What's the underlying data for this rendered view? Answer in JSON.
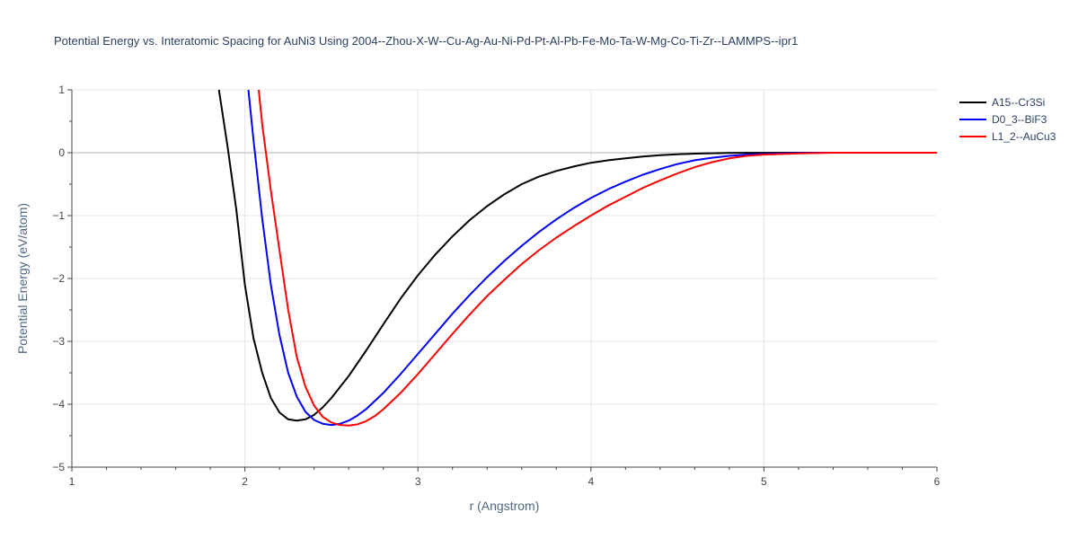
{
  "chart_data": {
    "type": "line",
    "title": "Potential Energy vs. Interatomic Spacing for AuNi3 Using 2004--Zhou-X-W--Cu-Ag-Au-Ni-Pd-Pt-Al-Pb-Fe-Mo-Ta-W-Mg-Co-Ti-Zr--LAMMPS--ipr1",
    "xlabel": "r (Angstrom)",
    "ylabel": "Potential Energy (eV/atom)",
    "xlim": [
      1,
      6
    ],
    "ylim": [
      -5,
      1
    ],
    "x_ticks": [
      1,
      2,
      3,
      4,
      5,
      6
    ],
    "y_ticks": [
      1,
      0,
      -1,
      -2,
      -3,
      -4,
      -5
    ],
    "x_tick_labels": [
      "1",
      "2",
      "3",
      "4",
      "5",
      "6"
    ],
    "y_tick_labels": [
      "1",
      "0",
      "−1",
      "−2",
      "−3",
      "−4",
      "−5"
    ],
    "grid": true,
    "legend_position": "top-right",
    "series": [
      {
        "name": "A15--Cr3Si",
        "color": "#000000",
        "x": [
          1.85,
          1.9,
          1.95,
          2.0,
          2.05,
          2.1,
          2.15,
          2.2,
          2.25,
          2.3,
          2.35,
          2.4,
          2.45,
          2.5,
          2.6,
          2.7,
          2.8,
          2.9,
          3.0,
          3.1,
          3.2,
          3.3,
          3.4,
          3.5,
          3.6,
          3.7,
          3.8,
          3.9,
          4.0,
          4.1,
          4.2,
          4.3,
          4.4,
          4.5,
          4.6,
          4.7,
          4.8,
          4.9,
          5.0,
          5.2,
          5.4,
          5.6,
          5.8,
          6.0
        ],
        "y": [
          1.0,
          0.1,
          -0.9,
          -2.1,
          -2.95,
          -3.5,
          -3.9,
          -4.13,
          -4.24,
          -4.26,
          -4.24,
          -4.17,
          -4.05,
          -3.9,
          -3.55,
          -3.15,
          -2.73,
          -2.32,
          -1.95,
          -1.62,
          -1.33,
          -1.07,
          -0.85,
          -0.66,
          -0.5,
          -0.38,
          -0.29,
          -0.22,
          -0.16,
          -0.12,
          -0.09,
          -0.06,
          -0.04,
          -0.025,
          -0.015,
          -0.008,
          -0.004,
          -0.002,
          -0.001,
          0,
          0,
          0,
          0,
          0
        ]
      },
      {
        "name": "D0_3--BiF3",
        "color": "#0000ff",
        "x": [
          2.02,
          2.05,
          2.1,
          2.15,
          2.2,
          2.25,
          2.3,
          2.35,
          2.4,
          2.45,
          2.5,
          2.55,
          2.6,
          2.65,
          2.7,
          2.8,
          2.9,
          3.0,
          3.1,
          3.2,
          3.3,
          3.4,
          3.5,
          3.6,
          3.7,
          3.8,
          3.9,
          4.0,
          4.1,
          4.2,
          4.3,
          4.4,
          4.5,
          4.6,
          4.7,
          4.8,
          4.9,
          5.0,
          5.2,
          5.4,
          5.6,
          5.8,
          6.0
        ],
        "y": [
          1.0,
          0.2,
          -1.05,
          -2.1,
          -2.9,
          -3.5,
          -3.88,
          -4.12,
          -4.25,
          -4.31,
          -4.33,
          -4.31,
          -4.26,
          -4.18,
          -4.08,
          -3.82,
          -3.52,
          -3.2,
          -2.88,
          -2.56,
          -2.26,
          -1.98,
          -1.72,
          -1.48,
          -1.26,
          -1.06,
          -0.88,
          -0.72,
          -0.58,
          -0.46,
          -0.35,
          -0.26,
          -0.18,
          -0.12,
          -0.08,
          -0.05,
          -0.03,
          -0.02,
          -0.005,
          0,
          0,
          0,
          0
        ]
      },
      {
        "name": "L1_2--AuCu3",
        "color": "#ff0000",
        "x": [
          2.08,
          2.1,
          2.15,
          2.2,
          2.25,
          2.3,
          2.35,
          2.4,
          2.45,
          2.5,
          2.55,
          2.6,
          2.65,
          2.7,
          2.75,
          2.8,
          2.9,
          3.0,
          3.1,
          3.2,
          3.3,
          3.4,
          3.5,
          3.6,
          3.7,
          3.8,
          3.9,
          4.0,
          4.1,
          4.2,
          4.3,
          4.4,
          4.5,
          4.6,
          4.7,
          4.8,
          4.9,
          5.0,
          5.2,
          5.4,
          5.6,
          5.8,
          6.0
        ],
        "y": [
          1.0,
          0.45,
          -0.6,
          -1.55,
          -2.5,
          -3.25,
          -3.72,
          -4.02,
          -4.2,
          -4.29,
          -4.33,
          -4.34,
          -4.32,
          -4.27,
          -4.19,
          -4.08,
          -3.82,
          -3.52,
          -3.2,
          -2.88,
          -2.57,
          -2.28,
          -2.02,
          -1.77,
          -1.55,
          -1.35,
          -1.17,
          -1.0,
          -0.84,
          -0.7,
          -0.56,
          -0.44,
          -0.33,
          -0.23,
          -0.15,
          -0.09,
          -0.05,
          -0.03,
          -0.01,
          0,
          0,
          0,
          0
        ]
      }
    ]
  }
}
